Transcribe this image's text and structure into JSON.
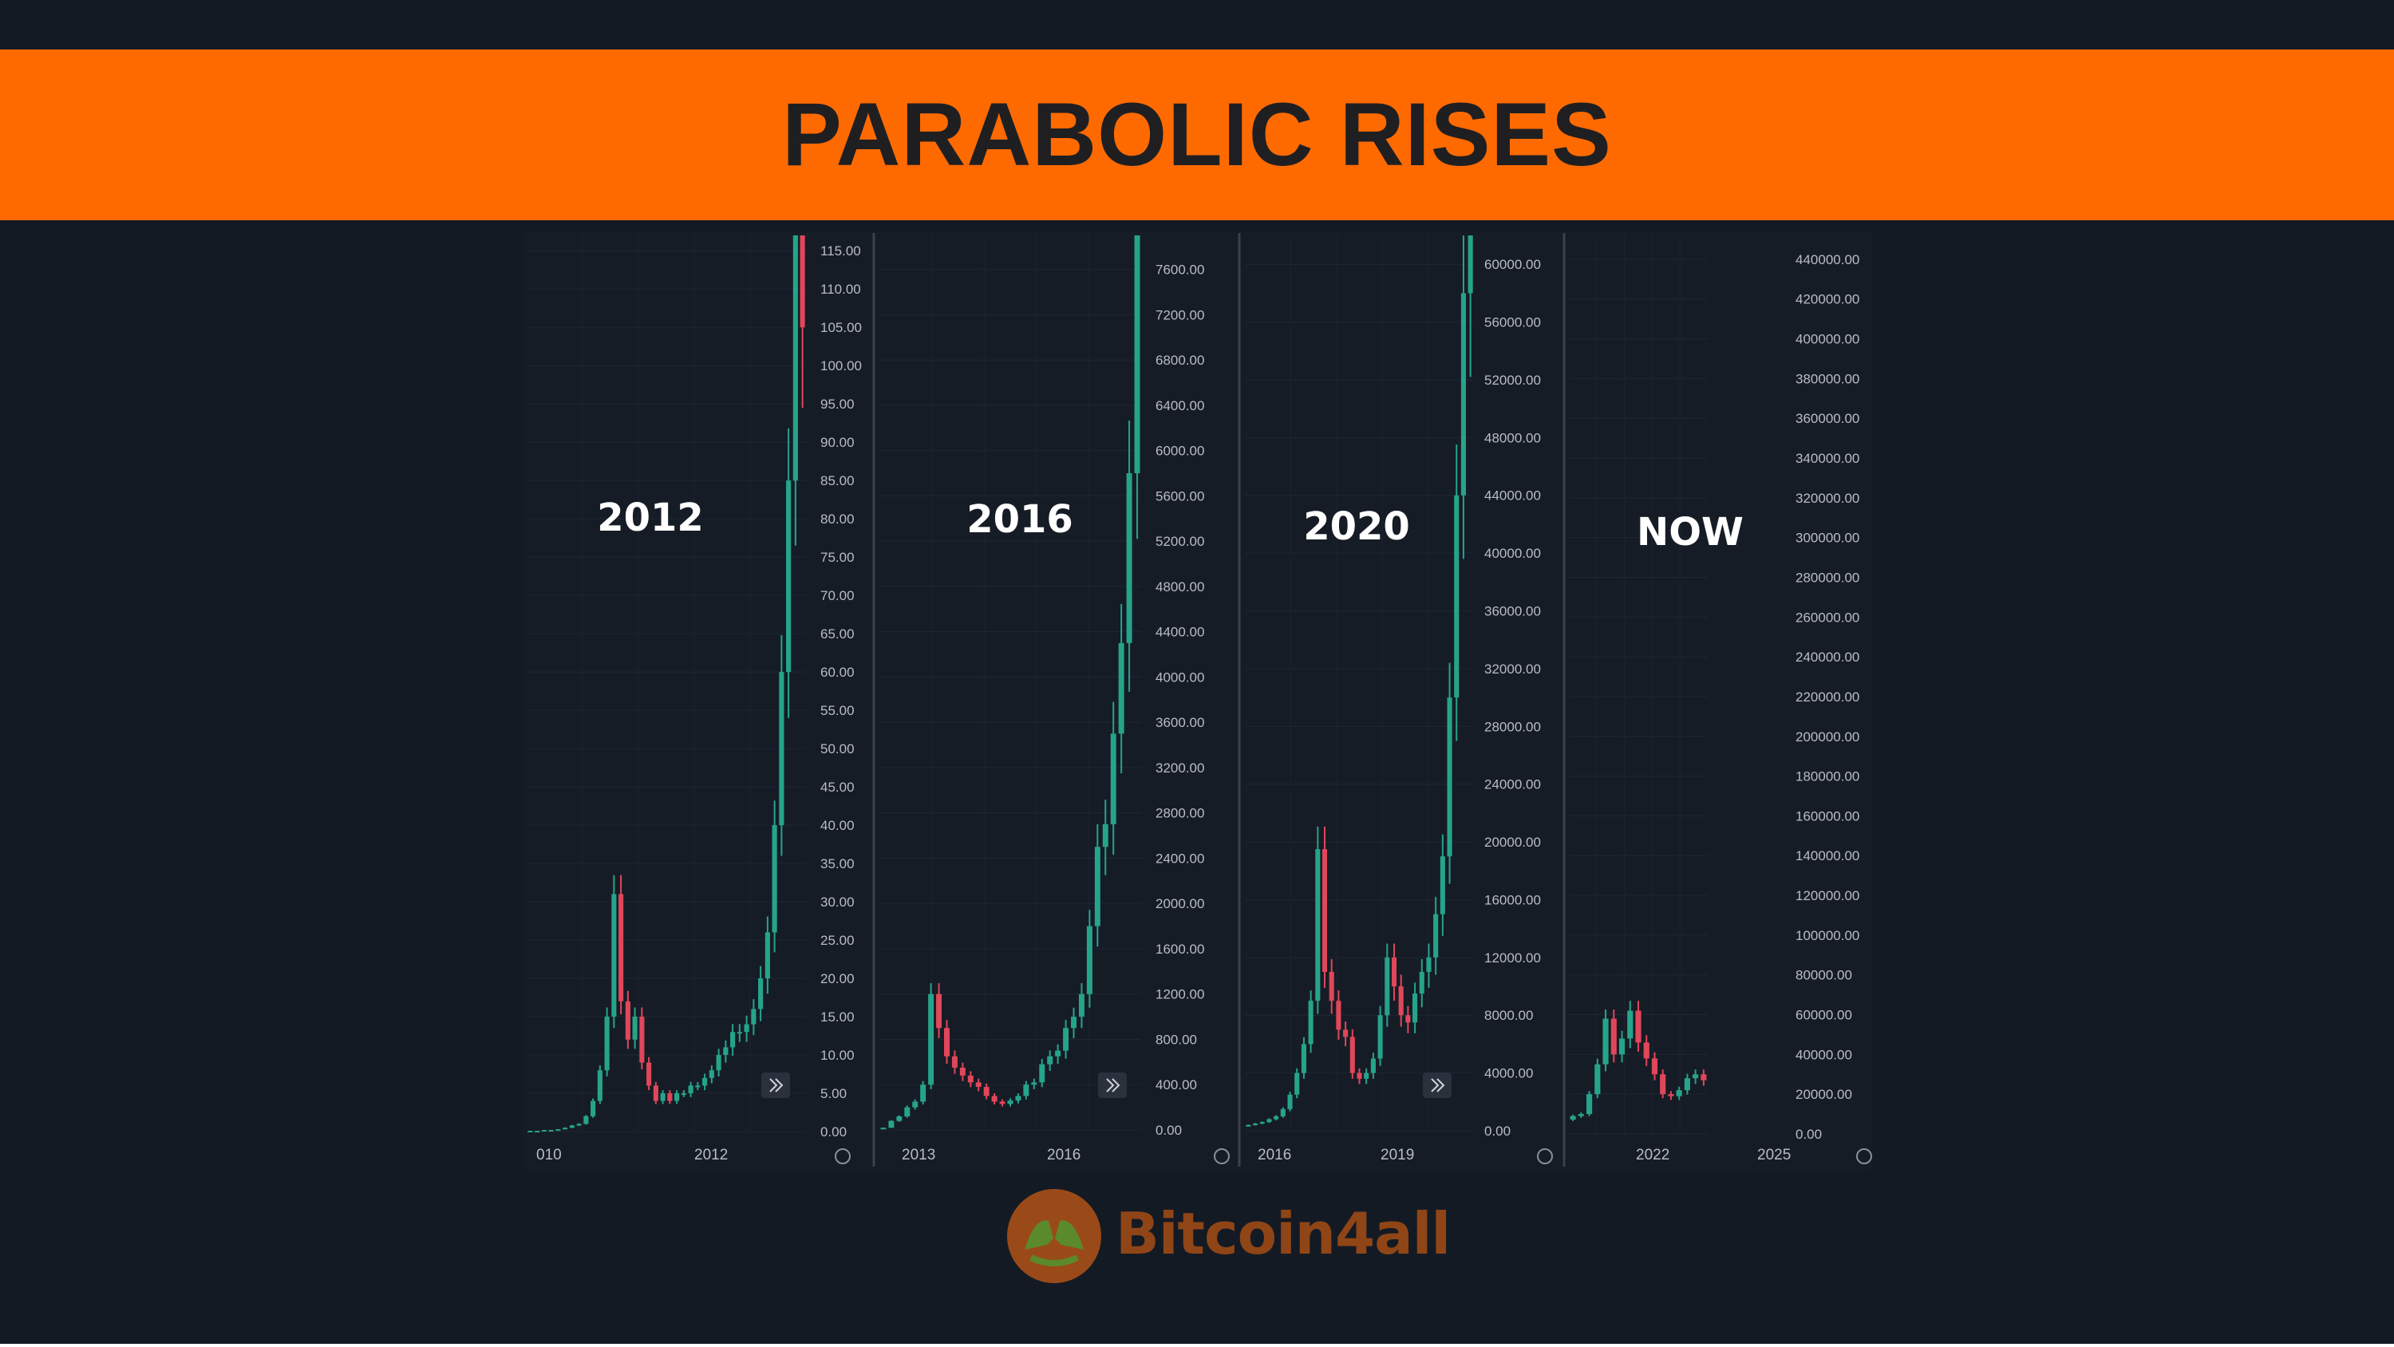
{
  "title": "PARABOLIC RISES",
  "brand": {
    "name": "Bitcoin4all",
    "logo_icon": "bitcoin-hands-logo-icon"
  },
  "colors": {
    "banner": "#ff6a00",
    "background": "#141a24",
    "up_candle": "#26a48a",
    "down_candle": "#e0475a",
    "axis_text": "#b8bcc4",
    "brand": "#8f4516"
  },
  "chart_data": [
    {
      "type": "candlestick",
      "overlay_label": "2012",
      "x_tick_labels": [
        "010",
        "2012"
      ],
      "y_tick_labels": [
        "0.00",
        "5.00",
        "10.00",
        "15.00",
        "20.00",
        "25.00",
        "30.00",
        "35.00",
        "40.00",
        "45.00",
        "50.00",
        "55.00",
        "60.00",
        "65.00",
        "70.00",
        "75.00",
        "80.00",
        "85.00",
        "90.00",
        "95.00",
        "100.00",
        "105.00",
        "110.00",
        "115.00"
      ],
      "ylim": [
        0,
        117
      ],
      "price_path": [
        0.1,
        0.1,
        0.2,
        0.2,
        0.3,
        0.5,
        0.8,
        1,
        2,
        4,
        8,
        15,
        31,
        17,
        12,
        15,
        9,
        6,
        4,
        5,
        4,
        5,
        5,
        6,
        6,
        7,
        8,
        10,
        11,
        13,
        13,
        14,
        16,
        20,
        26,
        40,
        60,
        85,
        118,
        105
      ],
      "grid": true
    },
    {
      "type": "candlestick",
      "overlay_label": "2016",
      "x_tick_labels": [
        "2013",
        "2016"
      ],
      "y_tick_labels": [
        "0.00",
        "400.00",
        "800.00",
        "1200.00",
        "1600.00",
        "2000.00",
        "2400.00",
        "2800.00",
        "3200.00",
        "3600.00",
        "4000.00",
        "4400.00",
        "4800.00",
        "5200.00",
        "5600.00",
        "6000.00",
        "6400.00",
        "6800.00",
        "7200.00",
        "7600.00"
      ],
      "ylim": [
        0,
        7900
      ],
      "price_path": [
        20,
        80,
        120,
        200,
        250,
        400,
        1200,
        900,
        650,
        550,
        480,
        420,
        380,
        300,
        250,
        230,
        260,
        300,
        400,
        420,
        580,
        650,
        700,
        900,
        1000,
        1200,
        1800,
        2500,
        2700,
        3500,
        4300,
        5800,
        7900
      ],
      "grid": true
    },
    {
      "type": "candlestick",
      "overlay_label": "2020",
      "x_tick_labels": [
        "2016",
        "2019"
      ],
      "y_tick_labels": [
        "0.00",
        "4000.00",
        "8000.00",
        "12000.00",
        "16000.00",
        "20000.00",
        "24000.00",
        "28000.00",
        "32000.00",
        "36000.00",
        "40000.00",
        "44000.00",
        "48000.00",
        "52000.00",
        "56000.00",
        "60000.00"
      ],
      "ylim": [
        0,
        62000
      ],
      "price_path": [
        400,
        500,
        600,
        800,
        1000,
        1500,
        2500,
        4000,
        6000,
        9000,
        19500,
        11000,
        9000,
        7000,
        6500,
        4000,
        3600,
        4000,
        5000,
        8000,
        12000,
        10000,
        8000,
        7500,
        9500,
        11000,
        12000,
        15000,
        19000,
        30000,
        44000,
        58000,
        63000
      ],
      "grid": true
    },
    {
      "type": "candlestick",
      "overlay_label": "NOW",
      "x_tick_labels": [
        "2022",
        "2025"
      ],
      "y_tick_labels": [
        "0.00",
        "20000.00",
        "40000.00",
        "60000.00",
        "80000.00",
        "100000.00",
        "120000.00",
        "140000.00",
        "160000.00",
        "180000.00",
        "200000.00",
        "220000.00",
        "240000.00",
        "260000.00",
        "280000.00",
        "300000.00",
        "320000.00",
        "340000.00",
        "360000.00",
        "380000.00",
        "400000.00",
        "420000.00",
        "440000.00"
      ],
      "ylim": [
        0,
        452000
      ],
      "price_path": [
        9000,
        10000,
        20000,
        35000,
        58000,
        40000,
        48000,
        62000,
        46000,
        38000,
        30000,
        20000,
        19000,
        22000,
        28000,
        30000,
        27000
      ],
      "grid": true
    }
  ]
}
